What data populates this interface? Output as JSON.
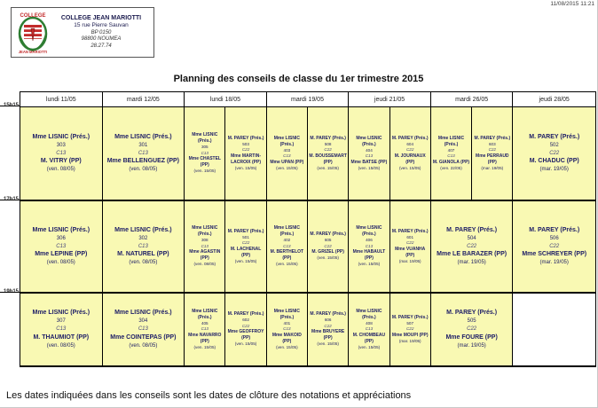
{
  "colors": {
    "cell_bg": "#f9f9b3",
    "border": "#000000",
    "cell_text": "#1c1c66",
    "logo_red": "#c22a2a",
    "logo_green": "#2e7d32"
  },
  "page": {
    "printed_timestamp": "11/08/2015 11:21",
    "footer_note": "Les dates indiquées dans les conseils sont les dates de clôture des notations et appréciations"
  },
  "school": {
    "name": "COLLEGE JEAN MARIOTTI",
    "address": "15 rue Pierre Sauvan",
    "bp": "BP 0150",
    "city": "98800 NOUMEA",
    "phone": "28.27.74",
    "logo": "college-jean-mariotti-emblem"
  },
  "title": "Planning des conseils de classe du 1er trimestre 2015",
  "table": {
    "time_labels": [
      "15h15",
      "17h15",
      "19h15"
    ],
    "day_headers": [
      "lundi 11/05",
      "mardi 12/05",
      "lundi 18/05",
      "mardi 19/05",
      "jeudi 21/05",
      "mardi 26/05",
      "jeudi 28/05"
    ],
    "rows": [
      [
        [
          {
            "president": "Mme LISNIC (Prés.)",
            "classe": "303",
            "salle": "C13",
            "pp": "M. VITRY (PP)",
            "date": "(ven. 08/05)"
          }
        ],
        [
          {
            "president": "Mme LISNIC (Prés.)",
            "classe": "301",
            "salle": "C13",
            "pp": "Mme BELLENGUEZ (PP)",
            "date": "(ven. 08/05)"
          }
        ],
        [
          {
            "president": "Mme LISNIC (Prés.)",
            "classe": "305",
            "salle": "C13",
            "pp": "Mme CHASTEL (PP)",
            "date": "(ven. 15/05)"
          },
          {
            "president": "M. PAREY (Prés.)",
            "classe": "503",
            "salle": "C22",
            "pp": "Mme MARTIN-LACROIX (PP)",
            "date": "(ven. 15/05)"
          }
        ],
        [
          {
            "president": "Mme LISNIC (Prés.)",
            "classe": "403",
            "salle": "C13",
            "pp": "Mme UPAN (PP)",
            "date": "(ven. 15/05)"
          },
          {
            "president": "M. PAREY (Prés.)",
            "classe": "508",
            "salle": "C22",
            "pp": "M. BOUSSEMART (PP)",
            "date": "(ven. 15/05)"
          }
        ],
        [
          {
            "president": "Mme LISNIC (Prés.)",
            "classe": "404",
            "salle": "C13",
            "pp": "Mme BATSE (PP)",
            "date": "(ven. 15/05)"
          },
          {
            "president": "M. PAREY (Prés.)",
            "classe": "604",
            "salle": "C22",
            "pp": "M. JOURNAUX (PP)",
            "date": "(ven. 15/05)"
          }
        ],
        [
          {
            "president": "Mme LISNIC (Prés.)",
            "classe": "407",
            "salle": "C13",
            "pp": "M. GIANOLA (PP)",
            "date": "(ven. 22/05)"
          },
          {
            "president": "M. PAREY (Prés.)",
            "classe": "603",
            "salle": "C22",
            "pp": "Mme PERRAUD (PP)",
            "date": "(mar. 19/05)"
          }
        ],
        [
          {
            "president": "M. PAREY (Prés.)",
            "classe": "502",
            "salle": "C22",
            "pp": "M. CHADUC (PP)",
            "date": "(mar. 19/05)"
          }
        ]
      ],
      [
        [
          {
            "president": "Mme LISNIC (Prés.)",
            "classe": "306",
            "salle": "C13",
            "pp": "Mme LEPINE (PP)",
            "date": "(ven. 08/05)"
          }
        ],
        [
          {
            "president": "Mme LISNIC (Prés.)",
            "classe": "302",
            "salle": "C13",
            "pp": "M. NATUREL (PP)",
            "date": "(ven. 08/05)"
          }
        ],
        [
          {
            "president": "Mme LISNIC (Prés.)",
            "classe": "308",
            "salle": "C13",
            "pp": "Mme AGASTIN (PP)",
            "date": "(ven. 08/05)"
          },
          {
            "president": "M. PAREY (Prés.)",
            "classe": "501",
            "salle": "C22",
            "pp": "M. LACHENAL (PP)",
            "date": "(ven. 15/05)"
          }
        ],
        [
          {
            "president": "Mme LISNIC (Prés.)",
            "classe": "402",
            "salle": "C13",
            "pp": "M. BERTHELOT (PP)",
            "date": "(ven. 15/05)"
          },
          {
            "president": "M. PAREY (Prés.)",
            "classe": "605",
            "salle": "C22",
            "pp": "M. GRIZEL (PP)",
            "date": "(ven. 15/05)"
          }
        ],
        [
          {
            "president": "Mme LISNIC (Prés.)",
            "classe": "406",
            "salle": "C13",
            "pp": "Mme HABAULT (PP)",
            "date": "(ven. 15/05)"
          },
          {
            "president": "M. PAREY (Prés.)",
            "classe": "601",
            "salle": "C22",
            "pp": "Mme VUANHA (PP)",
            "date": "(mar. 19/05)"
          }
        ],
        [
          {
            "president": "M. PAREY (Prés.)",
            "classe": "504",
            "salle": "C22",
            "pp": "Mme LE BARAZER (PP)",
            "date": "(mar. 19/05)"
          }
        ],
        [
          {
            "president": "M. PAREY (Prés.)",
            "classe": "506",
            "salle": "C22",
            "pp": "Mme SCHREYER (PP)",
            "date": "(mar. 19/05)"
          }
        ]
      ],
      [
        [
          {
            "president": "Mme LISNIC (Prés.)",
            "classe": "307",
            "salle": "C13",
            "pp": "M. THAUMIOT (PP)",
            "date": "(ven. 08/05)"
          }
        ],
        [
          {
            "president": "Mme LISNIC (Prés.)",
            "classe": "304",
            "salle": "C13",
            "pp": "Mme COINTEPAS (PP)",
            "date": "(ven. 08/05)"
          }
        ],
        [
          {
            "president": "Mme LISNIC (Prés.)",
            "classe": "405",
            "salle": "C13",
            "pp": "Mme NAVARRO (PP)",
            "date": "(ven. 15/05)"
          },
          {
            "president": "M. PAREY (Prés.)",
            "classe": "602",
            "salle": "C22",
            "pp": "Mme GEOFFROY (PP)",
            "date": "(ven. 15/05)"
          }
        ],
        [
          {
            "president": "Mme LISNIC (Prés.)",
            "classe": "401",
            "salle": "C13",
            "pp": "Mme MAKOID (PP)",
            "date": "(ven. 15/05)"
          },
          {
            "president": "M. PAREY (Prés.)",
            "classe": "606",
            "salle": "C22",
            "pp": "Mme BRUYERE (PP)",
            "date": "(ven. 15/05)"
          }
        ],
        [
          {
            "president": "Mme LISNIC (Prés.)",
            "classe": "408",
            "salle": "C13",
            "pp": "M. CHOMBEAU (PP)",
            "date": "(ven. 15/05)"
          },
          {
            "president": "M. PAREY (Prés.)",
            "classe": "507",
            "salle": "C22",
            "pp": "Mme MOUPI (PP)",
            "date": "(mar. 19/05)"
          }
        ],
        [
          {
            "president": "M. PAREY (Prés.)",
            "classe": "505",
            "salle": "C22",
            "pp": "Mme FOURE (PP)",
            "date": "(mar. 19/05)"
          }
        ],
        []
      ]
    ]
  }
}
